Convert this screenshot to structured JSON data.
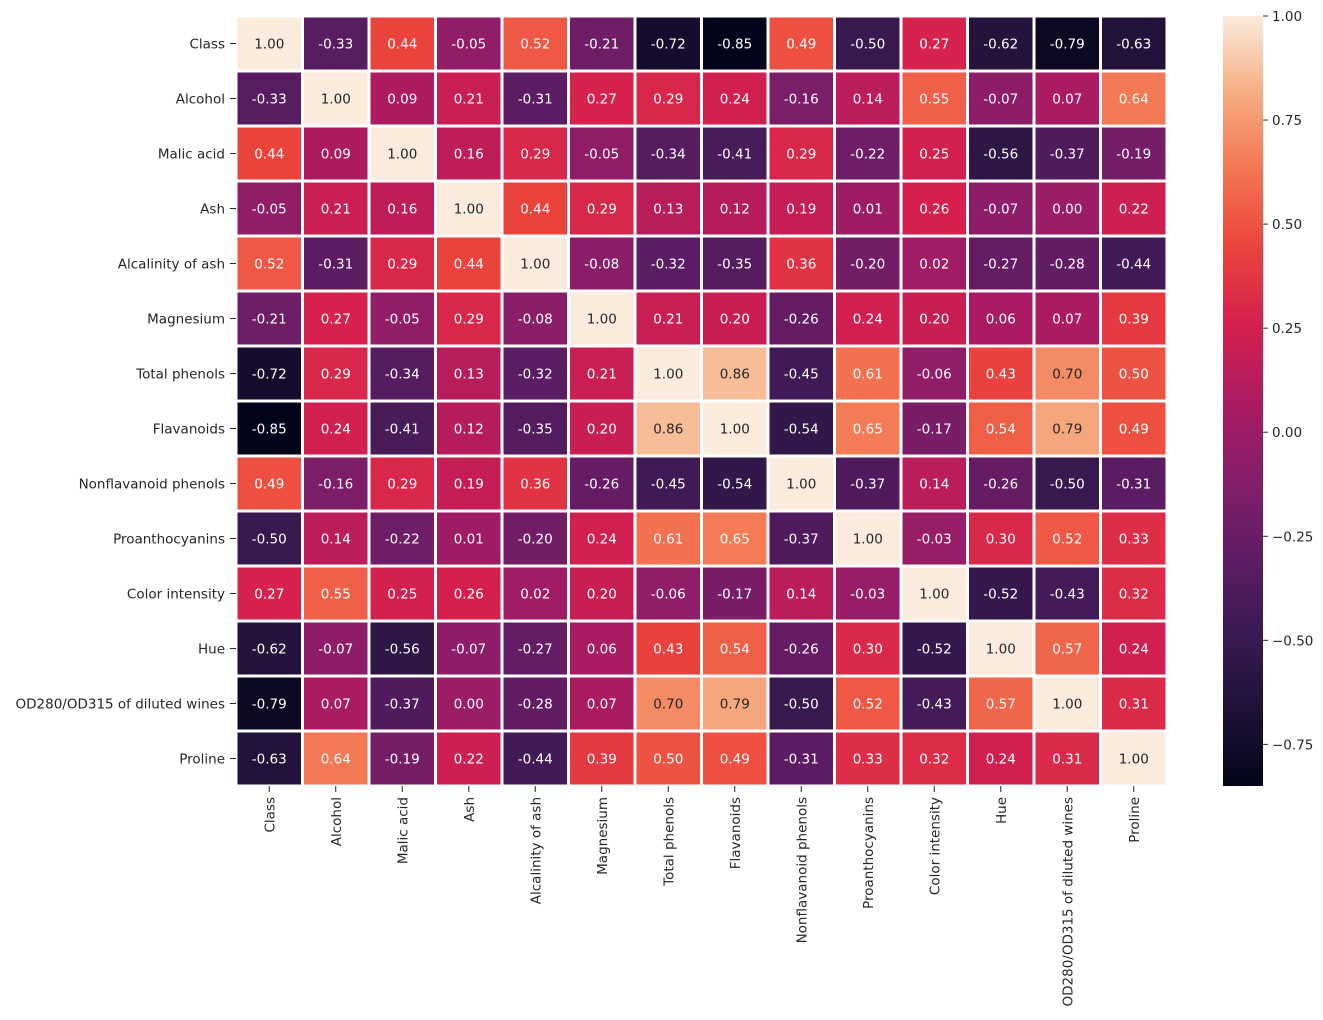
{
  "chart_data": {
    "type": "heatmap",
    "title": "",
    "xlabel": "",
    "ylabel": "",
    "labels": [
      "Class",
      "Alcohol",
      "Malic acid",
      "Ash",
      "Alcalinity of ash",
      "Magnesium",
      "Total phenols",
      "Flavanoids",
      "Nonflavanoid phenols",
      "Proanthocyanins",
      "Color intensity",
      "Hue",
      "OD280/OD315 of diluted wines",
      "Proline"
    ],
    "matrix": [
      [
        1.0,
        -0.33,
        0.44,
        -0.05,
        0.52,
        -0.21,
        -0.72,
        -0.85,
        0.49,
        -0.5,
        0.27,
        -0.62,
        -0.79,
        -0.63
      ],
      [
        -0.33,
        1.0,
        0.09,
        0.21,
        -0.31,
        0.27,
        0.29,
        0.24,
        -0.16,
        0.14,
        0.55,
        -0.07,
        0.07,
        0.64
      ],
      [
        0.44,
        0.09,
        1.0,
        0.16,
        0.29,
        -0.05,
        -0.34,
        -0.41,
        0.29,
        -0.22,
        0.25,
        -0.56,
        -0.37,
        -0.19
      ],
      [
        -0.05,
        0.21,
        0.16,
        1.0,
        0.44,
        0.29,
        0.13,
        0.12,
        0.19,
        0.01,
        0.26,
        -0.07,
        0.0,
        0.22
      ],
      [
        0.52,
        -0.31,
        0.29,
        0.44,
        1.0,
        -0.08,
        -0.32,
        -0.35,
        0.36,
        -0.2,
        0.02,
        -0.27,
        -0.28,
        -0.44
      ],
      [
        -0.21,
        0.27,
        -0.05,
        0.29,
        -0.08,
        1.0,
        0.21,
        0.2,
        -0.26,
        0.24,
        0.2,
        0.06,
        0.07,
        0.39
      ],
      [
        -0.72,
        0.29,
        -0.34,
        0.13,
        -0.32,
        0.21,
        1.0,
        0.86,
        -0.45,
        0.61,
        -0.06,
        0.43,
        0.7,
        0.5
      ],
      [
        -0.85,
        0.24,
        -0.41,
        0.12,
        -0.35,
        0.2,
        0.86,
        1.0,
        -0.54,
        0.65,
        -0.17,
        0.54,
        0.79,
        0.49
      ],
      [
        0.49,
        -0.16,
        0.29,
        0.19,
        0.36,
        -0.26,
        -0.45,
        -0.54,
        1.0,
        -0.37,
        0.14,
        -0.26,
        -0.5,
        -0.31
      ],
      [
        -0.5,
        0.14,
        -0.22,
        0.01,
        -0.2,
        0.24,
        0.61,
        0.65,
        -0.37,
        1.0,
        -0.03,
        0.3,
        0.52,
        0.33
      ],
      [
        0.27,
        0.55,
        0.25,
        0.26,
        0.02,
        0.2,
        -0.06,
        -0.17,
        0.14,
        -0.03,
        1.0,
        -0.52,
        -0.43,
        0.32
      ],
      [
        -0.62,
        -0.07,
        -0.56,
        -0.07,
        -0.27,
        0.06,
        0.43,
        0.54,
        -0.26,
        0.3,
        -0.52,
        1.0,
        0.57,
        0.24
      ],
      [
        -0.79,
        0.07,
        -0.37,
        0.0,
        -0.28,
        0.07,
        0.7,
        0.79,
        -0.5,
        0.52,
        -0.43,
        0.57,
        1.0,
        0.31
      ],
      [
        -0.63,
        0.64,
        -0.19,
        0.22,
        -0.44,
        0.39,
        0.5,
        0.49,
        -0.31,
        0.33,
        0.32,
        0.24,
        0.31,
        1.0
      ]
    ],
    "value_format": "0.00",
    "colormap": "rocket",
    "vmin": -0.85,
    "vmax": 1.0,
    "colorbar_ticks": [
      1.0,
      0.75,
      0.5,
      0.25,
      0.0,
      -0.25,
      -0.5,
      -0.75
    ],
    "colorbar_tick_labels": [
      "1.00",
      "0.75",
      "0.50",
      "0.25",
      "0.00",
      "−0.25",
      "−0.50",
      "−0.75"
    ],
    "cell_border_color": "#ffffff",
    "legend": "colorbar-right"
  }
}
